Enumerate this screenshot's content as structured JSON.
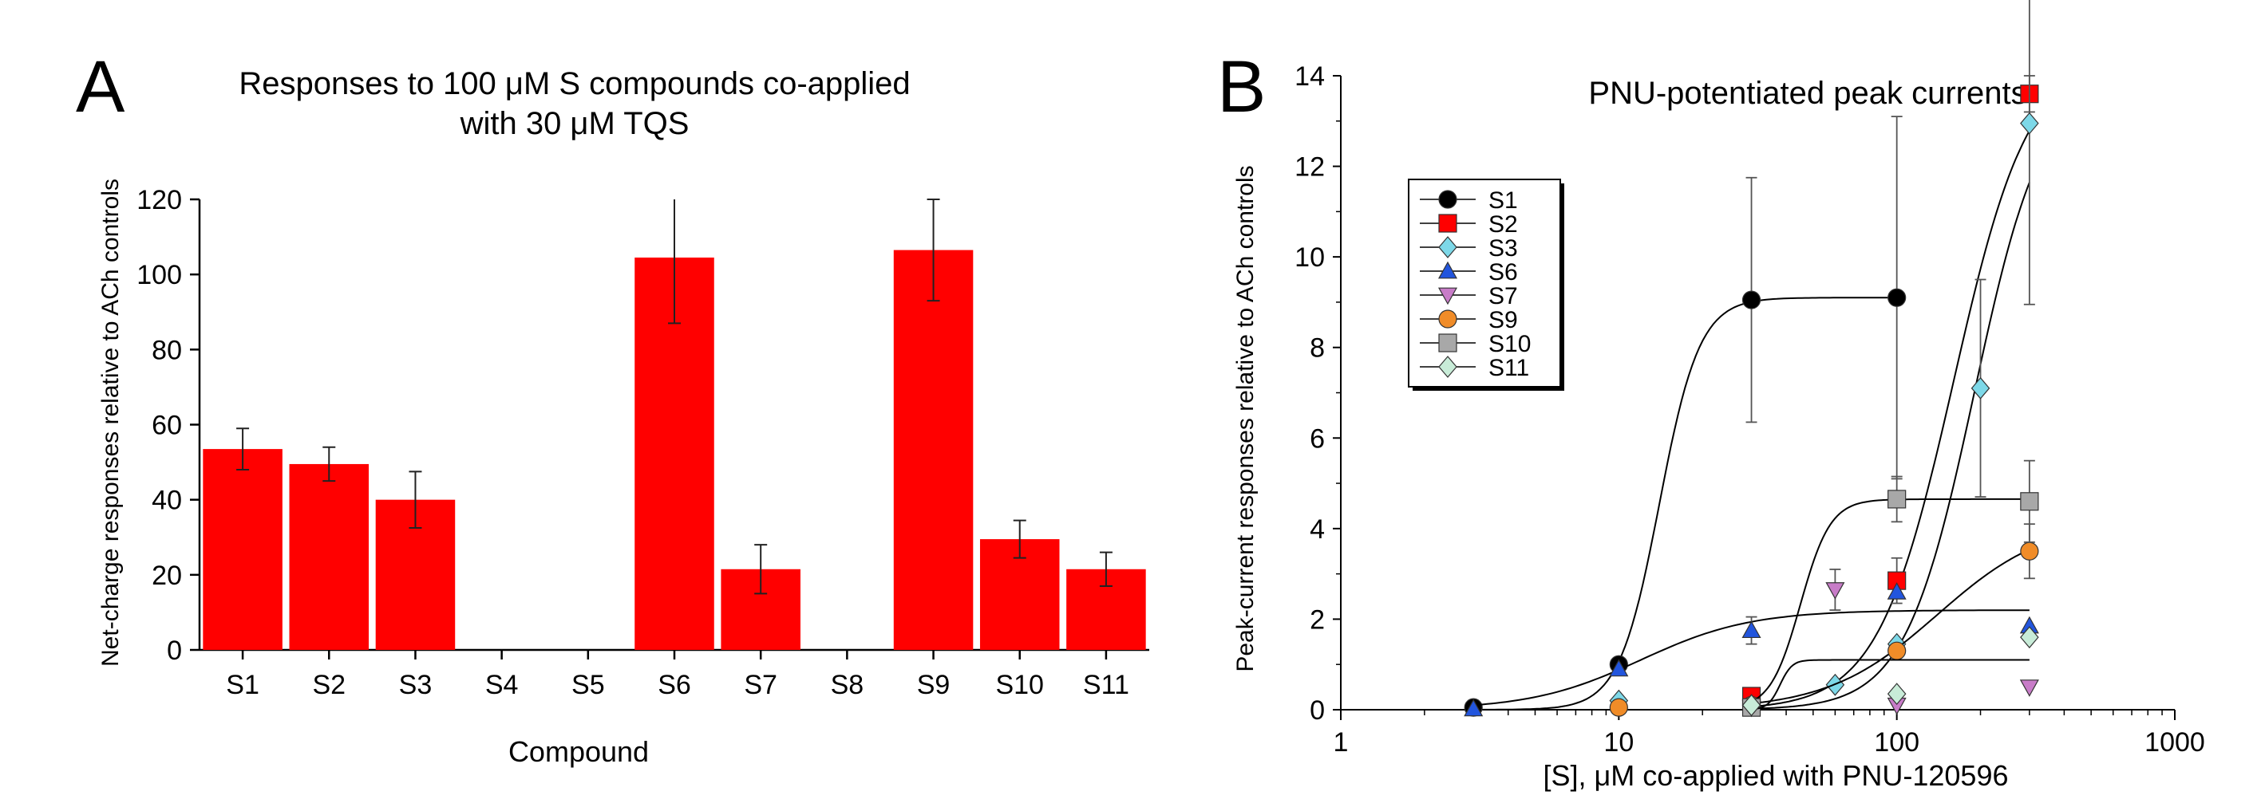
{
  "chart_data": [
    {
      "panel": "A",
      "type": "bar",
      "title": [
        "Responses to 100 μM S compounds co-applied",
        "with 30 μM TQS"
      ],
      "xlabel": "Compound",
      "ylabel": "Net-charge responses relative to ACh controls",
      "ylim": [
        0,
        120
      ],
      "yticks": [
        0,
        20,
        40,
        60,
        80,
        100,
        120
      ],
      "categories": [
        "S1",
        "S2",
        "S3",
        "S4",
        "S5",
        "S6",
        "S7",
        "S8",
        "S9",
        "S10",
        "S11"
      ],
      "values": [
        53.5,
        49.5,
        40,
        0,
        0,
        104.5,
        21.5,
        0,
        106.5,
        29.5,
        21.5
      ],
      "errors": [
        5.5,
        4.5,
        7.5,
        0,
        0,
        17.5,
        6.5,
        0,
        13.5,
        5.0,
        4.5
      ],
      "color": "#ff0000"
    },
    {
      "panel": "B",
      "type": "scatter",
      "title": "PNU-potentiated peak currents",
      "xlabel": "[S], μM co-applied with PNU-120596",
      "ylabel": "Peak-current responses relative to ACh controls",
      "xscale": "log",
      "xlim": [
        1,
        1000
      ],
      "xticks": [
        1,
        10,
        100,
        1000
      ],
      "ylim": [
        0,
        14
      ],
      "yticks": [
        0,
        2,
        4,
        6,
        8,
        10,
        12,
        14
      ],
      "legend_position": "top-left",
      "series": [
        {
          "name": "S1",
          "marker": "circle",
          "color": "#000000",
          "fit": true,
          "x": [
            3,
            10,
            30,
            100
          ],
          "y": [
            0.05,
            1.0,
            9.05,
            9.1
          ],
          "err": [
            0,
            0.1,
            2.7,
            4.0
          ]
        },
        {
          "name": "S2",
          "marker": "square",
          "color": "#ff0000",
          "fit": true,
          "x": [
            30,
            100,
            300
          ],
          "y": [
            0.3,
            2.85,
            13.6
          ],
          "err": [
            0,
            0.5,
            0.4
          ]
        },
        {
          "name": "S3",
          "marker": "diamond",
          "color": "#7dd8e8",
          "fit": true,
          "x": [
            10,
            30,
            60,
            100,
            200,
            300
          ],
          "y": [
            0.2,
            0.1,
            0.55,
            1.45,
            7.1,
            12.95
          ],
          "err": [
            0,
            0,
            0,
            0,
            2.4,
            4.0
          ]
        },
        {
          "name": "S6",
          "marker": "triangle-up",
          "color": "#2255dd",
          "fit": true,
          "x": [
            3,
            10,
            30,
            100,
            300
          ],
          "y": [
            0.02,
            0.9,
            1.75,
            2.6,
            1.85
          ],
          "err": [
            0,
            0,
            0.3,
            0,
            0
          ]
        },
        {
          "name": "S7",
          "marker": "triangle-down",
          "color": "#c87cc8",
          "fit": false,
          "x": [
            30,
            60,
            100,
            300
          ],
          "y": [
            0.05,
            2.65,
            0.1,
            0.5
          ],
          "err": [
            0,
            0.45,
            0,
            0
          ]
        },
        {
          "name": "S9",
          "marker": "circle",
          "color": "#f08c28",
          "fit": true,
          "x": [
            10,
            30,
            100,
            300
          ],
          "y": [
            0.05,
            0.1,
            1.3,
            3.5
          ],
          "err": [
            0,
            0,
            0,
            0.6
          ]
        },
        {
          "name": "S10",
          "marker": "square",
          "color": "#a8a8a8",
          "fit": true,
          "x": [
            30,
            100,
            300
          ],
          "y": [
            0.05,
            4.65,
            4.6
          ],
          "err": [
            0,
            0.5,
            0.9
          ]
        },
        {
          "name": "S11",
          "marker": "diamond",
          "color": "#c8ecd8",
          "fit": true,
          "x": [
            30,
            100,
            300
          ],
          "y": [
            0.1,
            0.35,
            1.6
          ],
          "err": [
            0,
            0,
            0
          ]
        }
      ]
    }
  ]
}
